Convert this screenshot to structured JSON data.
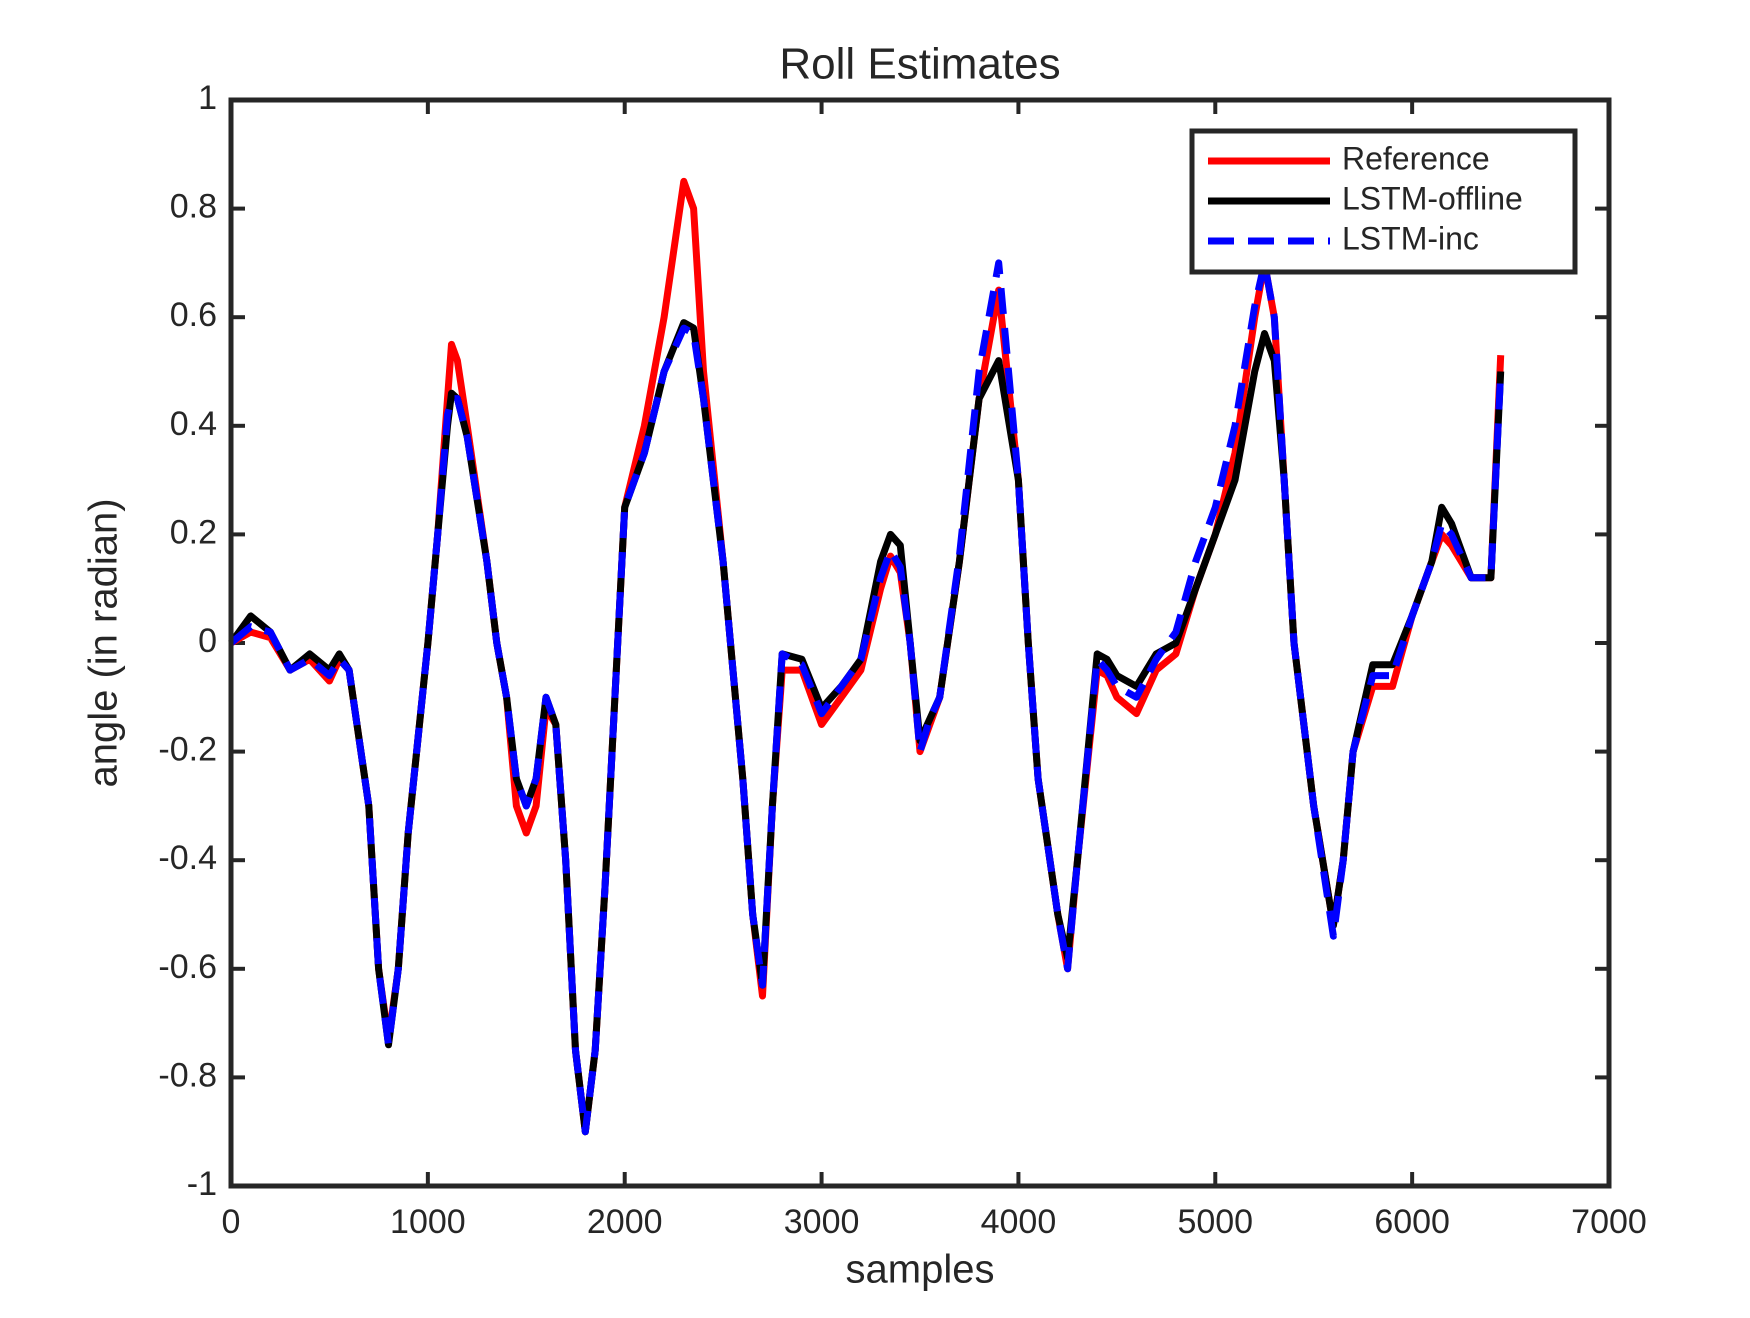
{
  "chart_data": {
    "type": "line",
    "title": "Roll Estimates",
    "xlabel": "samples",
    "ylabel": "angle (in radian)",
    "x": [
      0,
      100,
      200,
      300,
      400,
      500,
      550,
      600,
      700,
      750,
      800,
      850,
      900,
      1000,
      1050,
      1100,
      1120,
      1150,
      1200,
      1300,
      1350,
      1400,
      1450,
      1500,
      1550,
      1600,
      1650,
      1700,
      1750,
      1800,
      1850,
      1900,
      1950,
      2000,
      2100,
      2200,
      2300,
      2350,
      2400,
      2500,
      2600,
      2650,
      2700,
      2750,
      2800,
      2900,
      3000,
      3100,
      3200,
      3300,
      3350,
      3400,
      3450,
      3500,
      3550,
      3600,
      3700,
      3800,
      3900,
      4000,
      4050,
      4100,
      4200,
      4250,
      4300,
      4400,
      4450,
      4500,
      4600,
      4700,
      4800,
      4900,
      5000,
      5100,
      5200,
      5250,
      5300,
      5350,
      5400,
      5500,
      5600,
      5650,
      5700,
      5800,
      5900,
      6000,
      6100,
      6150,
      6200,
      6300,
      6400,
      6450
    ],
    "series": [
      {
        "name": "Reference",
        "color": "#ff0000",
        "dash": false,
        "values": [
          0,
          0.02,
          0.01,
          -0.05,
          -0.03,
          -0.07,
          -0.03,
          -0.05,
          -0.3,
          -0.6,
          -0.73,
          -0.6,
          -0.35,
          0.0,
          0.2,
          0.45,
          0.55,
          0.52,
          0.4,
          0.15,
          0.0,
          -0.1,
          -0.3,
          -0.35,
          -0.3,
          -0.12,
          -0.15,
          -0.4,
          -0.75,
          -0.9,
          -0.75,
          -0.45,
          -0.1,
          0.25,
          0.4,
          0.6,
          0.85,
          0.8,
          0.5,
          0.15,
          -0.25,
          -0.5,
          -0.65,
          -0.3,
          -0.05,
          -0.05,
          -0.15,
          -0.1,
          -0.05,
          0.1,
          0.16,
          0.13,
          0.0,
          -0.2,
          -0.15,
          -0.1,
          0.15,
          0.45,
          0.65,
          0.3,
          0.0,
          -0.25,
          -0.5,
          -0.6,
          -0.4,
          -0.05,
          -0.06,
          -0.1,
          -0.13,
          -0.05,
          -0.02,
          0.1,
          0.2,
          0.35,
          0.6,
          0.7,
          0.6,
          0.3,
          0.0,
          -0.3,
          -0.52,
          -0.4,
          -0.2,
          -0.08,
          -0.08,
          0.05,
          0.15,
          0.2,
          0.18,
          0.12,
          0.12,
          0.53
        ]
      },
      {
        "name": "LSTM-offline",
        "color": "#000000",
        "dash": false,
        "values": [
          0,
          0.05,
          0.02,
          -0.05,
          -0.02,
          -0.05,
          -0.02,
          -0.05,
          -0.3,
          -0.6,
          -0.74,
          -0.6,
          -0.35,
          0.0,
          0.2,
          0.4,
          0.46,
          0.45,
          0.38,
          0.15,
          0.0,
          -0.1,
          -0.25,
          -0.3,
          -0.25,
          -0.1,
          -0.15,
          -0.4,
          -0.75,
          -0.9,
          -0.75,
          -0.45,
          -0.1,
          0.25,
          0.35,
          0.5,
          0.59,
          0.58,
          0.45,
          0.15,
          -0.25,
          -0.5,
          -0.63,
          -0.3,
          -0.02,
          -0.03,
          -0.12,
          -0.08,
          -0.03,
          0.15,
          0.2,
          0.18,
          0.0,
          -0.18,
          -0.14,
          -0.1,
          0.15,
          0.45,
          0.52,
          0.3,
          0.0,
          -0.25,
          -0.5,
          -0.58,
          -0.4,
          -0.02,
          -0.03,
          -0.06,
          -0.08,
          -0.02,
          0.0,
          0.1,
          0.2,
          0.3,
          0.5,
          0.57,
          0.52,
          0.3,
          0.0,
          -0.3,
          -0.52,
          -0.4,
          -0.2,
          -0.04,
          -0.04,
          0.05,
          0.15,
          0.25,
          0.22,
          0.12,
          0.12,
          0.5
        ]
      },
      {
        "name": "LSTM-inc",
        "color": "#0000ff",
        "dash": true,
        "values": [
          0,
          0.03,
          0.02,
          -0.05,
          -0.03,
          -0.06,
          -0.03,
          -0.05,
          -0.3,
          -0.6,
          -0.74,
          -0.6,
          -0.35,
          0.0,
          0.2,
          0.42,
          0.45,
          0.45,
          0.38,
          0.15,
          0.0,
          -0.1,
          -0.25,
          -0.3,
          -0.25,
          -0.1,
          -0.15,
          -0.4,
          -0.75,
          -0.9,
          -0.75,
          -0.45,
          -0.1,
          0.25,
          0.35,
          0.5,
          0.58,
          0.57,
          0.45,
          0.15,
          -0.25,
          -0.5,
          -0.63,
          -0.3,
          -0.02,
          -0.04,
          -0.13,
          -0.08,
          -0.03,
          0.12,
          0.17,
          0.14,
          0.0,
          -0.2,
          -0.14,
          -0.1,
          0.16,
          0.5,
          0.7,
          0.3,
          0.0,
          -0.25,
          -0.5,
          -0.6,
          -0.4,
          -0.03,
          -0.05,
          -0.08,
          -0.1,
          -0.03,
          0.02,
          0.15,
          0.25,
          0.4,
          0.62,
          0.7,
          0.6,
          0.3,
          0.0,
          -0.3,
          -0.54,
          -0.4,
          -0.2,
          -0.06,
          -0.06,
          0.05,
          0.15,
          0.22,
          0.2,
          0.12,
          0.12,
          0.5
        ]
      }
    ],
    "xlim": [
      0,
      7000
    ],
    "xticks": [
      0,
      1000,
      2000,
      3000,
      4000,
      5000,
      6000,
      7000
    ],
    "ylim": [
      -1,
      1
    ],
    "yticks": [
      -1,
      -0.8,
      -0.6,
      -0.4,
      -0.2,
      0,
      0.2,
      0.4,
      0.6,
      0.8,
      1
    ],
    "grid": false,
    "legend": "upper right"
  }
}
